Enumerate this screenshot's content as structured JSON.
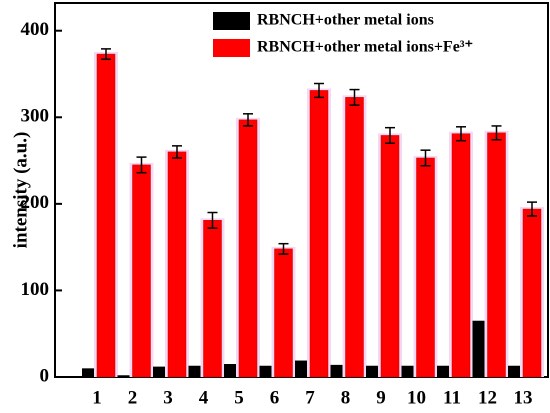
{
  "chart_data": {
    "type": "bar",
    "y_label": "intensity (a.u.)",
    "categories": [
      "1",
      "2",
      "3",
      "4",
      "5",
      "6",
      "7",
      "8",
      "9",
      "10",
      "11",
      "12",
      "13"
    ],
    "series": [
      {
        "name": "RBNCH+other metal ions",
        "color": "#000000",
        "values": [
          10,
          2,
          12,
          13,
          15,
          13,
          19,
          14,
          13,
          13,
          13,
          65,
          13
        ]
      },
      {
        "name": "RBNCH+other metal ions+Fe³⁺",
        "color": "#ff0000",
        "values": [
          373,
          245,
          260,
          181,
          297,
          148,
          331,
          323,
          279,
          253,
          281,
          282,
          194
        ],
        "errors": [
          6,
          9,
          7,
          9,
          7,
          6,
          8,
          9,
          9,
          9,
          8,
          8,
          8
        ]
      }
    ],
    "ylim": [
      0,
      432
    ],
    "yticks": [
      0,
      100,
      200,
      300,
      400
    ]
  }
}
